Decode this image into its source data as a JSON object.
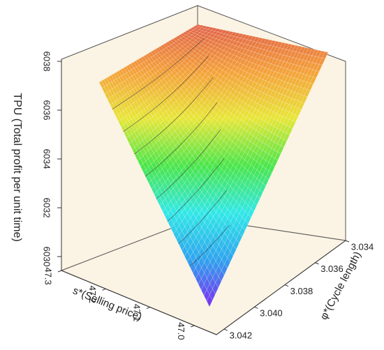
{
  "chart_data": {
    "type": "surface3d",
    "z_axis": {
      "label": "TPU (Total profit per unit time)",
      "ticks": [
        "6030",
        "6032",
        "6034",
        "6036",
        "6038"
      ],
      "range": [
        6029,
        6038
      ]
    },
    "x_axis": {
      "label": "s*(Selling price)",
      "ticks": [
        "47.0",
        "47.1",
        "47.2",
        "47.3"
      ],
      "range": [
        46.95,
        47.3
      ]
    },
    "y_axis": {
      "label": "φ*(Cycle length)",
      "ticks": [
        "3.042",
        "3.040",
        "3.038",
        "3.036",
        "3.034"
      ],
      "range": [
        3.034,
        3.0425
      ]
    },
    "surface_corners": [
      {
        "s": 47.3,
        "phi": 3.034,
        "tpu": 6038.0
      },
      {
        "s": 47.3,
        "phi": 3.0425,
        "tpu": 6037.0
      },
      {
        "s": 46.95,
        "phi": 3.0425,
        "tpu": 6029.1
      },
      {
        "s": 46.95,
        "phi": 3.034,
        "tpu": 6036.9
      }
    ],
    "colormap": [
      "#7d2cf0",
      "#2fa4ee",
      "#31e8e8",
      "#4ae64a",
      "#e8e637",
      "#f4a13a",
      "#e06048"
    ],
    "colorbar_range": [
      6029,
      6038
    ]
  }
}
